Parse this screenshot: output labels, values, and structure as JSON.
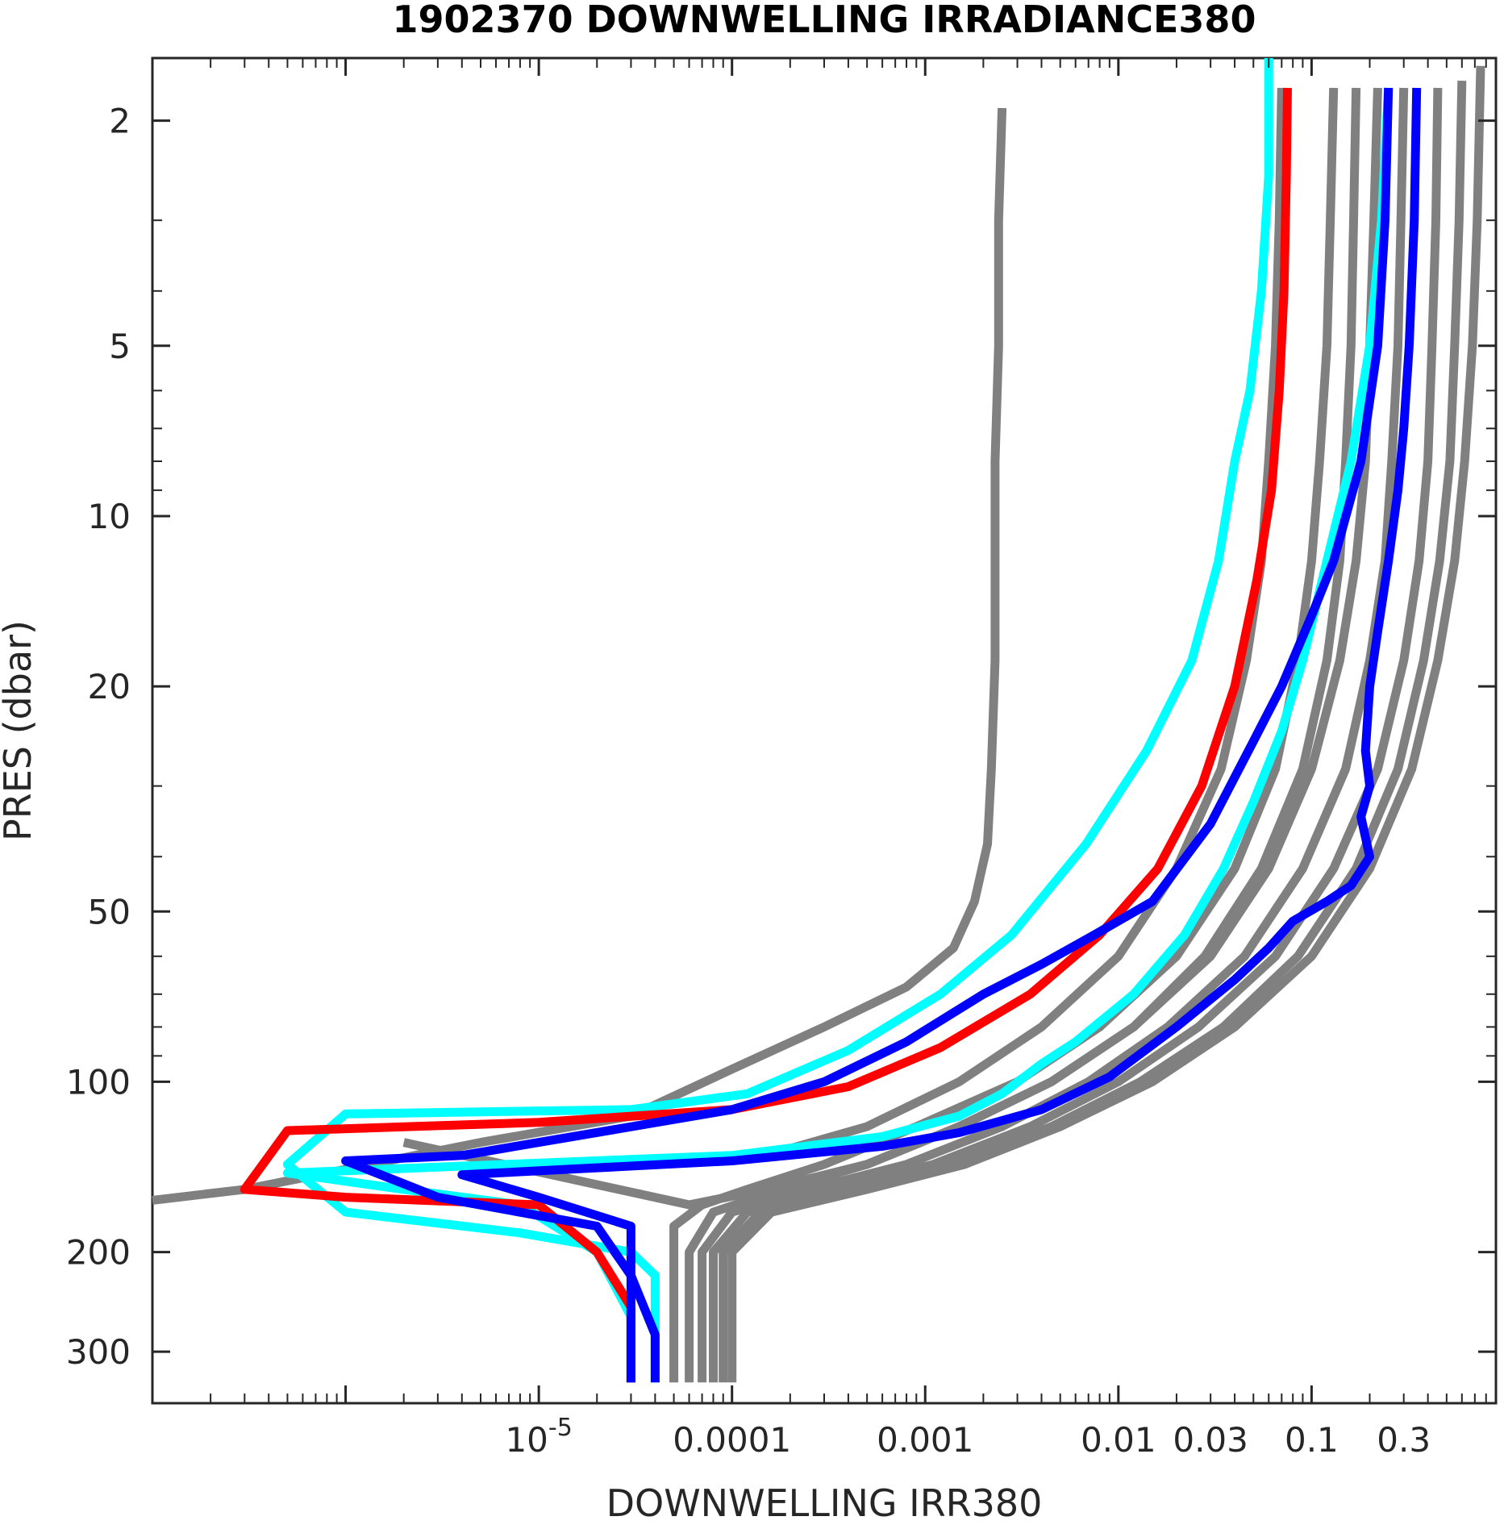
{
  "chart_data": {
    "type": "line",
    "title": "1902370  DOWNWELLING IRRADIANCE380",
    "xlabel": "DOWNWELLING IRR380",
    "ylabel": "PRES (dbar)",
    "x_scale": "log",
    "y_scale": "log",
    "y_reversed": true,
    "xlim": [
      1e-07,
      0.9
    ],
    "ylim": [
      1.55,
      370
    ],
    "x_ticks": [
      {
        "value": 1e-05,
        "base": "10",
        "exp": "-5"
      },
      {
        "value": 0.0001,
        "label": "0.0001"
      },
      {
        "value": 0.001,
        "label": "0.001"
      },
      {
        "value": 0.01,
        "label": "0.01"
      },
      {
        "value": 0.03,
        "label": "0.03"
      },
      {
        "value": 0.1,
        "label": "0.1"
      },
      {
        "value": 0.3,
        "label": "0.3"
      }
    ],
    "y_ticks": [
      {
        "value": 2,
        "label": "2"
      },
      {
        "value": 5,
        "label": "5"
      },
      {
        "value": 10,
        "label": "10"
      },
      {
        "value": 20,
        "label": "20"
      },
      {
        "value": 50,
        "label": "50"
      },
      {
        "value": 100,
        "label": "100"
      },
      {
        "value": 200,
        "label": "200"
      },
      {
        "value": 300,
        "label": "300"
      }
    ],
    "grid": false,
    "legend": "none",
    "colors": {
      "gray": "#808080",
      "cyan": "#00ffff",
      "blue": "#0000ff",
      "red": "#ff0000",
      "axis": "#262626"
    },
    "series": [
      {
        "color": "gray",
        "points": [
          [
            0.0025,
            1.9
          ],
          [
            0.0024,
            3
          ],
          [
            0.0024,
            5
          ],
          [
            0.0023,
            8
          ],
          [
            0.0023,
            12
          ],
          [
            0.0023,
            18
          ],
          [
            0.0022,
            28
          ],
          [
            0.0021,
            38
          ],
          [
            0.0018,
            48
          ],
          [
            0.0014,
            58
          ],
          [
            0.0008,
            68
          ],
          [
            0.0003,
            80
          ],
          [
            0.0001,
            95
          ],
          [
            3e-05,
            115
          ],
          [
            5e-06,
            128
          ],
          [
            3e-07,
            155
          ],
          [
            1e-07,
            162
          ]
        ]
      },
      {
        "color": "gray",
        "points": [
          [
            0.13,
            1.75
          ],
          [
            0.125,
            3
          ],
          [
            0.12,
            5
          ],
          [
            0.11,
            8
          ],
          [
            0.1,
            12
          ],
          [
            0.085,
            18
          ],
          [
            0.065,
            28
          ],
          [
            0.04,
            42
          ],
          [
            0.02,
            60
          ],
          [
            0.008,
            80
          ],
          [
            0.003,
            100
          ],
          [
            0.0009,
            120
          ],
          [
            0.0003,
            140
          ],
          [
            0.00012,
            155
          ],
          [
            7e-05,
            165
          ],
          [
            5e-05,
            180
          ],
          [
            5e-05,
            210
          ],
          [
            5e-05,
            260
          ],
          [
            5e-05,
            340
          ]
        ]
      },
      {
        "color": "gray",
        "points": [
          [
            0.17,
            1.75
          ],
          [
            0.165,
            3
          ],
          [
            0.16,
            5
          ],
          [
            0.15,
            8
          ],
          [
            0.14,
            12
          ],
          [
            0.12,
            18
          ],
          [
            0.09,
            28
          ],
          [
            0.055,
            42
          ],
          [
            0.028,
            60
          ],
          [
            0.012,
            80
          ],
          [
            0.0045,
            100
          ],
          [
            0.0015,
            120
          ],
          [
            0.0005,
            140
          ],
          [
            0.00018,
            155
          ],
          [
            8e-05,
            170
          ],
          [
            6e-05,
            200
          ],
          [
            6e-05,
            280
          ],
          [
            6e-05,
            340
          ]
        ]
      },
      {
        "color": "gray",
        "points": [
          [
            0.3,
            1.75
          ],
          [
            0.29,
            3
          ],
          [
            0.28,
            5
          ],
          [
            0.26,
            8
          ],
          [
            0.24,
            12
          ],
          [
            0.2,
            18
          ],
          [
            0.15,
            28
          ],
          [
            0.09,
            42
          ],
          [
            0.045,
            60
          ],
          [
            0.018,
            80
          ],
          [
            0.007,
            100
          ],
          [
            0.0025,
            120
          ],
          [
            0.0008,
            140
          ],
          [
            0.00025,
            155
          ],
          [
            0.0001,
            170
          ],
          [
            7e-05,
            200
          ],
          [
            7e-05,
            280
          ],
          [
            7e-05,
            340
          ]
        ]
      },
      {
        "color": "gray",
        "points": [
          [
            0.45,
            1.75
          ],
          [
            0.44,
            3
          ],
          [
            0.42,
            5
          ],
          [
            0.4,
            8
          ],
          [
            0.36,
            12
          ],
          [
            0.3,
            18
          ],
          [
            0.22,
            28
          ],
          [
            0.13,
            42
          ],
          [
            0.065,
            60
          ],
          [
            0.026,
            80
          ],
          [
            0.01,
            100
          ],
          [
            0.0035,
            120
          ],
          [
            0.0011,
            140
          ],
          [
            0.00035,
            155
          ],
          [
            0.00012,
            170
          ],
          [
            8e-05,
            200
          ],
          [
            8e-05,
            280
          ],
          [
            8e-05,
            340
          ]
        ]
      },
      {
        "color": "gray",
        "points": [
          [
            0.6,
            1.7
          ],
          [
            0.58,
            3
          ],
          [
            0.55,
            5
          ],
          [
            0.52,
            8
          ],
          [
            0.46,
            12
          ],
          [
            0.38,
            18
          ],
          [
            0.28,
            28
          ],
          [
            0.17,
            42
          ],
          [
            0.085,
            60
          ],
          [
            0.035,
            80
          ],
          [
            0.013,
            100
          ],
          [
            0.0045,
            120
          ],
          [
            0.0014,
            140
          ],
          [
            0.00045,
            155
          ],
          [
            0.00014,
            170
          ],
          [
            9e-05,
            200
          ],
          [
            9e-05,
            280
          ],
          [
            9e-05,
            340
          ]
        ]
      },
      {
        "color": "gray",
        "points": [
          [
            0.07,
            1.75
          ],
          [
            0.068,
            3
          ],
          [
            0.065,
            5
          ],
          [
            0.06,
            8
          ],
          [
            0.055,
            12
          ],
          [
            0.046,
            18
          ],
          [
            0.034,
            28
          ],
          [
            0.02,
            42
          ],
          [
            0.01,
            60
          ],
          [
            0.004,
            80
          ],
          [
            0.0015,
            100
          ],
          [
            0.0005,
            120
          ],
          [
            0.00015,
            135
          ],
          [
            4e-05,
            140
          ],
          [
            5e-06,
            142
          ]
        ]
      },
      {
        "color": "gray",
        "points": [
          [
            0.75,
            1.6
          ],
          [
            0.72,
            3
          ],
          [
            0.68,
            5
          ],
          [
            0.62,
            8
          ],
          [
            0.55,
            12
          ],
          [
            0.45,
            18
          ],
          [
            0.33,
            28
          ],
          [
            0.2,
            42
          ],
          [
            0.1,
            60
          ],
          [
            0.04,
            80
          ],
          [
            0.015,
            100
          ],
          [
            0.005,
            120
          ],
          [
            0.0016,
            140
          ],
          [
            0.0005,
            155
          ],
          [
            0.00016,
            170
          ],
          [
            0.0001,
            200
          ],
          [
            0.0001,
            280
          ],
          [
            0.0001,
            340
          ]
        ]
      },
      {
        "color": "gray",
        "points": [
          [
            0.22,
            1.75
          ],
          [
            0.21,
            3
          ],
          [
            0.2,
            5
          ],
          [
            0.19,
            8
          ],
          [
            0.17,
            12
          ],
          [
            0.14,
            18
          ],
          [
            0.1,
            28
          ],
          [
            0.06,
            42
          ],
          [
            0.03,
            60
          ],
          [
            0.012,
            80
          ],
          [
            0.0045,
            100
          ],
          [
            0.0015,
            120
          ],
          [
            0.0005,
            140
          ],
          [
            0.00015,
            155
          ],
          [
            6e-05,
            165
          ],
          [
            2e-06,
            128
          ]
        ]
      },
      {
        "color": "cyan",
        "points": [
          [
            0.06,
            1.55
          ],
          [
            0.06,
            2.5
          ],
          [
            0.055,
            4
          ],
          [
            0.048,
            6
          ],
          [
            0.04,
            8
          ],
          [
            0.033,
            12
          ],
          [
            0.024,
            18
          ],
          [
            0.014,
            26
          ],
          [
            0.0068,
            38
          ],
          [
            0.0028,
            55
          ],
          [
            0.0012,
            70
          ],
          [
            0.0004,
            88
          ],
          [
            0.00012,
            105
          ],
          [
            3e-05,
            112
          ],
          [
            1e-06,
            114
          ],
          [
            5e-07,
            140
          ],
          [
            1e-06,
            170
          ],
          [
            8e-06,
            185
          ],
          [
            3e-05,
            200
          ],
          [
            4e-05,
            220
          ],
          [
            4e-05,
            260
          ],
          [
            4e-05,
            340
          ]
        ]
      },
      {
        "color": "cyan",
        "points": [
          [
            0.25,
            1.75
          ],
          [
            0.23,
            3
          ],
          [
            0.2,
            5
          ],
          [
            0.16,
            8
          ],
          [
            0.12,
            12
          ],
          [
            0.09,
            18
          ],
          [
            0.07,
            24
          ],
          [
            0.05,
            32
          ],
          [
            0.035,
            42
          ],
          [
            0.022,
            55
          ],
          [
            0.012,
            70
          ],
          [
            0.006,
            85
          ],
          [
            0.004,
            93
          ],
          [
            0.0025,
            105
          ],
          [
            0.0015,
            115
          ],
          [
            0.0006,
            125
          ],
          [
            0.0001,
            135
          ],
          [
            5e-07,
            145
          ],
          [
            2e-06,
            155
          ],
          [
            8e-06,
            165
          ],
          [
            2e-05,
            200
          ],
          [
            3e-05,
            260
          ],
          [
            3e-05,
            340
          ]
        ]
      },
      {
        "color": "red",
        "points": [
          [
            0.075,
            1.75
          ],
          [
            0.074,
            2.5
          ],
          [
            0.072,
            4
          ],
          [
            0.068,
            6
          ],
          [
            0.062,
            9
          ],
          [
            0.052,
            13
          ],
          [
            0.04,
            20
          ],
          [
            0.027,
            30
          ],
          [
            0.016,
            42
          ],
          [
            0.008,
            55
          ],
          [
            0.0035,
            70
          ],
          [
            0.0012,
            87
          ],
          [
            0.0004,
            102
          ],
          [
            0.0001,
            112
          ],
          [
            1e-05,
            118
          ],
          [
            5e-07,
            122
          ],
          [
            3e-07,
            155
          ],
          [
            1e-06,
            160
          ],
          [
            1e-05,
            165
          ],
          [
            2e-05,
            200
          ],
          [
            3e-05,
            250
          ],
          [
            3e-05,
            340
          ]
        ]
      },
      {
        "color": "blue",
        "points": [
          [
            0.35,
            1.75
          ],
          [
            0.34,
            3
          ],
          [
            0.32,
            5
          ],
          [
            0.3,
            7
          ],
          [
            0.28,
            9
          ],
          [
            0.25,
            12
          ],
          [
            0.22,
            16
          ],
          [
            0.2,
            20
          ],
          [
            0.19,
            26
          ],
          [
            0.2,
            30
          ],
          [
            0.18,
            34
          ],
          [
            0.2,
            40
          ],
          [
            0.16,
            45
          ],
          [
            0.12,
            48
          ],
          [
            0.08,
            52
          ],
          [
            0.06,
            58
          ],
          [
            0.04,
            66
          ],
          [
            0.02,
            80
          ],
          [
            0.009,
            98
          ],
          [
            0.004,
            112
          ],
          [
            0.0015,
            123
          ],
          [
            0.0006,
            130
          ],
          [
            0.0001,
            138
          ],
          [
            4e-06,
            146
          ],
          [
            1e-05,
            160
          ],
          [
            3e-05,
            180
          ],
          [
            3e-05,
            220
          ],
          [
            3e-05,
            340
          ]
        ]
      },
      {
        "color": "blue",
        "points": [
          [
            0.25,
            1.75
          ],
          [
            0.24,
            3
          ],
          [
            0.22,
            5
          ],
          [
            0.18,
            8
          ],
          [
            0.13,
            12
          ],
          [
            0.1,
            15
          ],
          [
            0.07,
            20
          ],
          [
            0.05,
            25
          ],
          [
            0.03,
            35
          ],
          [
            0.015,
            48
          ],
          [
            0.0075,
            55
          ],
          [
            0.004,
            62
          ],
          [
            0.002,
            70
          ],
          [
            0.0008,
            85
          ],
          [
            0.0003,
            100
          ],
          [
            0.0001,
            112
          ],
          [
            4e-06,
            135
          ],
          [
            1e-06,
            138
          ],
          [
            3e-06,
            160
          ],
          [
            2e-05,
            180
          ],
          [
            3e-05,
            220
          ],
          [
            4e-05,
            280
          ],
          [
            4e-05,
            340
          ]
        ]
      }
    ]
  }
}
